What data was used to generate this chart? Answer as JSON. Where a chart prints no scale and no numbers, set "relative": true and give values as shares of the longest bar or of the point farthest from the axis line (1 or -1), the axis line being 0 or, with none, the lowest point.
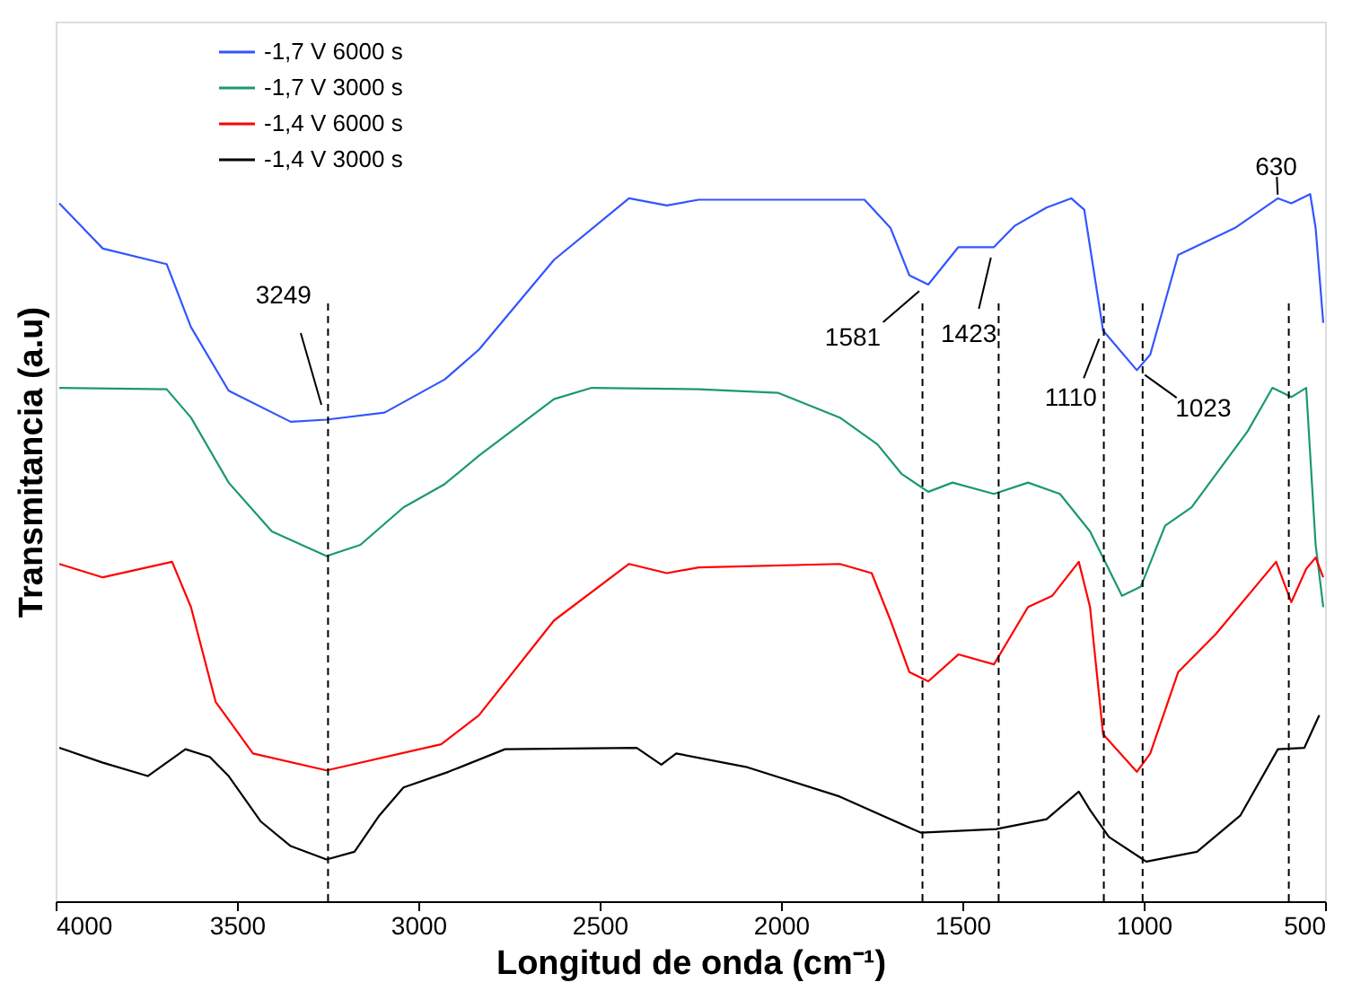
{
  "chart_data": {
    "type": "line",
    "relative": true,
    "xlabel": "Longitud de onda (cm⁻¹)",
    "ylabel": "Transmitancia (a.u)",
    "xlim": [
      4000,
      500
    ],
    "xticks": [
      4000,
      3500,
      3000,
      2500,
      2000,
      1500,
      1000,
      500
    ],
    "legend": "top left",
    "grid": false,
    "marker": "none",
    "line_style": "solid",
    "series": [
      {
        "name": "-1,7 V 6000 s",
        "color": "#3355ff",
        "x": [
          3990,
          3870,
          3694,
          3627,
          3523,
          3352,
          3253,
          3093,
          2927,
          2833,
          2626,
          2419,
          2315,
          2227,
          1770,
          1698,
          1646,
          1594,
          1511,
          1413,
          1356,
          1268,
          1200,
          1164,
          1112,
          1019,
          982,
          905,
          749,
          630,
          593,
          541,
          526,
          505
        ],
        "values": [
          0.987,
          0.923,
          0.901,
          0.812,
          0.722,
          0.678,
          0.681,
          0.691,
          0.738,
          0.78,
          0.907,
          0.994,
          0.984,
          0.992,
          0.992,
          0.952,
          0.885,
          0.872,
          0.925,
          0.925,
          0.955,
          0.981,
          0.994,
          0.978,
          0.807,
          0.751,
          0.773,
          0.914,
          0.952,
          0.994,
          0.987,
          1.0,
          0.952,
          0.818
        ]
      },
      {
        "name": "-1,7 V 3000 s",
        "color": "#1a9a6a",
        "x": [
          3990,
          3694,
          3627,
          3523,
          3404,
          3253,
          3160,
          3041,
          2927,
          2833,
          2626,
          2522,
          2227,
          2009,
          1838,
          1734,
          1667,
          1594,
          1527,
          1413,
          1319,
          1231,
          1148,
          1060,
          1008,
          941,
          868,
          713,
          645,
          593,
          552,
          526,
          505
        ],
        "values": [
          0.726,
          0.724,
          0.684,
          0.592,
          0.523,
          0.488,
          0.504,
          0.557,
          0.59,
          0.63,
          0.71,
          0.726,
          0.724,
          0.719,
          0.684,
          0.646,
          0.604,
          0.579,
          0.592,
          0.576,
          0.592,
          0.576,
          0.523,
          0.432,
          0.445,
          0.531,
          0.557,
          0.665,
          0.726,
          0.713,
          0.726,
          0.504,
          0.416
        ]
      },
      {
        "name": "-1,4 V 6000 s",
        "color": "#ff0000",
        "x": [
          3990,
          3870,
          3679,
          3627,
          3559,
          3456,
          3253,
          2937,
          2833,
          2626,
          2419,
          2315,
          2227,
          1838,
          1750,
          1698,
          1646,
          1594,
          1511,
          1413,
          1319,
          1252,
          1179,
          1148,
          1112,
          1019,
          982,
          905,
          801,
          635,
          593,
          552,
          526,
          505
        ],
        "values": [
          0.477,
          0.458,
          0.48,
          0.416,
          0.282,
          0.209,
          0.185,
          0.222,
          0.263,
          0.397,
          0.477,
          0.464,
          0.472,
          0.477,
          0.464,
          0.397,
          0.324,
          0.311,
          0.349,
          0.335,
          0.416,
          0.432,
          0.48,
          0.416,
          0.236,
          0.183,
          0.209,
          0.324,
          0.378,
          0.48,
          0.423,
          0.47,
          0.486,
          0.458
        ]
      },
      {
        "name": "-1,4 V 3000 s",
        "color": "#000000",
        "x": [
          3990,
          3870,
          3746,
          3642,
          3575,
          3523,
          3435,
          3352,
          3253,
          3176,
          3108,
          3041,
          2917,
          2761,
          2398,
          2330,
          2289,
          2097,
          1838,
          1615,
          1407,
          1268,
          1179,
          1148,
          1096,
          993,
          853,
          734,
          630,
          557,
          516
        ],
        "values": [
          0.217,
          0.196,
          0.177,
          0.215,
          0.204,
          0.177,
          0.113,
          0.078,
          0.059,
          0.07,
          0.121,
          0.161,
          0.183,
          0.215,
          0.217,
          0.193,
          0.209,
          0.19,
          0.148,
          0.097,
          0.102,
          0.116,
          0.155,
          0.129,
          0.091,
          0.056,
          0.07,
          0.121,
          0.215,
          0.217,
          0.263
        ]
      }
    ],
    "ref_lines": [
      {
        "axis": "x",
        "value": 3249,
        "line_style": "dashed",
        "color": "#000000"
      },
      {
        "axis": "x",
        "value": 1610,
        "line_style": "dashed",
        "color": "#000000"
      },
      {
        "axis": "x",
        "value": 1400,
        "line_style": "dashed",
        "color": "#000000"
      },
      {
        "axis": "x",
        "value": 1110,
        "line_style": "dashed",
        "color": "#000000"
      },
      {
        "axis": "x",
        "value": 1003,
        "line_style": "dashed",
        "color": "#000000"
      },
      {
        "axis": "x",
        "value": 600,
        "line_style": "dashed",
        "color": "#000000"
      }
    ],
    "annotations": [
      {
        "text": "3249",
        "x": 3253,
        "y": 0.681
      },
      {
        "text": "1581",
        "x": 1594,
        "y": 0.872
      },
      {
        "text": "1423",
        "x": 1413,
        "y": 0.925
      },
      {
        "text": "1110",
        "x": 1112,
        "y": 0.807
      },
      {
        "text": "1023",
        "x": 1019,
        "y": 0.751
      },
      {
        "text": "630",
        "x": 630,
        "y": 0.994
      }
    ]
  }
}
